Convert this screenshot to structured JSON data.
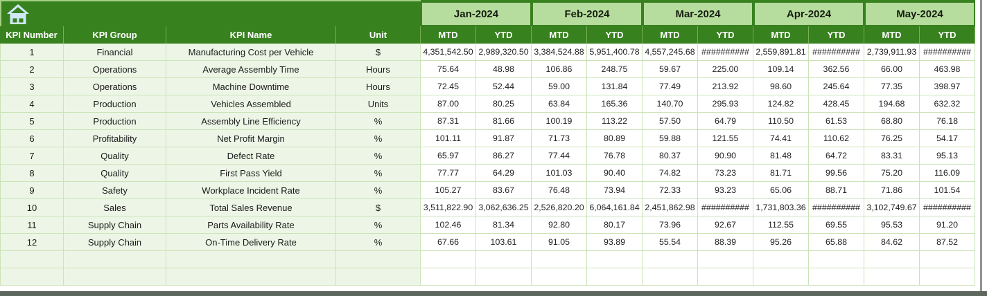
{
  "table": {
    "left_headers": [
      "KPI Number",
      "KPI Group",
      "KPI Name",
      "Unit"
    ],
    "months": [
      "Jan-2024",
      "Feb-2024",
      "Mar-2024",
      "Apr-2024",
      "May-2024"
    ],
    "sub_headers": [
      "MTD",
      "YTD"
    ],
    "overflow_marker": "##########",
    "rows": [
      {
        "number": "1",
        "group": "Financial",
        "name": "Manufacturing Cost per Vehicle",
        "unit": "$",
        "values": [
          "4,351,542.50",
          "2,989,320.50",
          "3,384,524.88",
          "5,951,400.78",
          "4,557,245.68",
          "##########",
          "2,559,891.81",
          "##########",
          "2,739,911.93",
          "##########"
        ]
      },
      {
        "number": "2",
        "group": "Operations",
        "name": "Average Assembly Time",
        "unit": "Hours",
        "values": [
          "75.64",
          "48.98",
          "106.86",
          "248.75",
          "59.67",
          "225.00",
          "109.14",
          "362.56",
          "66.00",
          "463.98"
        ]
      },
      {
        "number": "3",
        "group": "Operations",
        "name": "Machine Downtime",
        "unit": "Hours",
        "values": [
          "72.45",
          "52.44",
          "59.00",
          "131.84",
          "77.49",
          "213.92",
          "98.60",
          "245.64",
          "77.35",
          "398.97"
        ]
      },
      {
        "number": "4",
        "group": "Production",
        "name": "Vehicles Assembled",
        "unit": "Units",
        "values": [
          "87.00",
          "80.25",
          "63.84",
          "165.36",
          "140.70",
          "295.93",
          "124.82",
          "428.45",
          "194.68",
          "632.32"
        ]
      },
      {
        "number": "5",
        "group": "Production",
        "name": "Assembly Line Efficiency",
        "unit": "%",
        "values": [
          "87.31",
          "81.66",
          "100.19",
          "113.22",
          "57.50",
          "64.79",
          "110.50",
          "61.53",
          "68.80",
          "76.18"
        ]
      },
      {
        "number": "6",
        "group": "Profitability",
        "name": "Net Profit Margin",
        "unit": "%",
        "values": [
          "101.11",
          "91.87",
          "71.73",
          "80.89",
          "59.88",
          "121.55",
          "74.41",
          "110.62",
          "76.25",
          "54.17"
        ]
      },
      {
        "number": "7",
        "group": "Quality",
        "name": "Defect Rate",
        "unit": "%",
        "values": [
          "65.97",
          "86.27",
          "77.44",
          "76.78",
          "80.37",
          "90.90",
          "81.48",
          "64.72",
          "83.31",
          "95.13"
        ]
      },
      {
        "number": "8",
        "group": "Quality",
        "name": "First Pass Yield",
        "unit": "%",
        "values": [
          "77.77",
          "64.29",
          "101.03",
          "90.40",
          "74.82",
          "73.23",
          "81.71",
          "99.56",
          "75.20",
          "116.09"
        ]
      },
      {
        "number": "9",
        "group": "Safety",
        "name": "Workplace Incident Rate",
        "unit": "%",
        "values": [
          "105.27",
          "83.67",
          "76.48",
          "73.94",
          "72.33",
          "93.23",
          "65.06",
          "88.71",
          "71.86",
          "101.54"
        ]
      },
      {
        "number": "10",
        "group": "Sales",
        "name": "Total Sales Revenue",
        "unit": "$",
        "values": [
          "3,511,822.90",
          "3,062,636.25",
          "2,526,820.20",
          "6,064,161.84",
          "2,451,862.98",
          "##########",
          "1,731,803.36",
          "##########",
          "3,102,749.67",
          "##########"
        ]
      },
      {
        "number": "11",
        "group": "Supply Chain",
        "name": "Parts Availability Rate",
        "unit": "%",
        "values": [
          "102.46",
          "81.34",
          "92.80",
          "80.17",
          "73.96",
          "92.67",
          "112.55",
          "69.55",
          "95.53",
          "91.20"
        ]
      },
      {
        "number": "12",
        "group": "Supply Chain",
        "name": "On-Time Delivery Rate",
        "unit": "%",
        "values": [
          "67.66",
          "103.61",
          "91.05",
          "93.89",
          "55.54",
          "88.39",
          "95.26",
          "65.88",
          "84.62",
          "87.52"
        ]
      }
    ],
    "empty_rows": 2
  },
  "icons": {
    "home": "house"
  },
  "colors": {
    "header_green": "#38811f",
    "month_green": "#b6dd9e",
    "row_tint": "#edf6e6",
    "grid_border": "#cbe3b8",
    "subheader_divider": "#79ae55",
    "header_text": "#ffffff",
    "body_text": "#222222",
    "bottom_bar": "#5d675d",
    "home_icon_blue": "#cfe9f8"
  }
}
